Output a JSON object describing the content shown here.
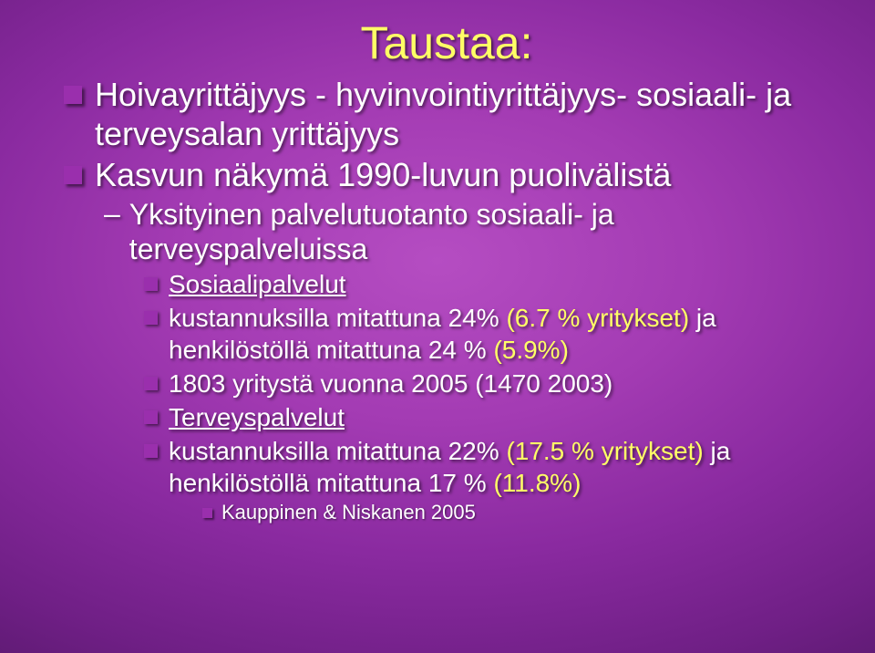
{
  "colors": {
    "title_color": "#ffff66",
    "text_color": "#ffffff",
    "highlight_color": "#ffff66",
    "bullet_lvl1": "#9a2fad",
    "bullet_lvl3": "#9a2fad",
    "bullet_lvl4": "#9a2fad",
    "bg_center": "#b54dc2",
    "bg_edge": "#3a0e4a"
  },
  "title": "Taustaa:",
  "items": {
    "b1": "Hoivayrittäjyys - hyvinvointiyrittäjyys- sosiaali- ja terveysalan yrittäjyys",
    "b2": "Kasvun näkymä 1990-luvun puolivälistä",
    "b2_1": "Yksityinen palvelutuotanto sosiaali- ja terveyspalveluissa",
    "b2_1_1": "Sosiaalipalvelut",
    "b2_1_2_a": "kustannuksilla mitattuna  24% ",
    "b2_1_2_b": "(6.7 % yritykset)",
    "b2_1_2_c": "   ja henkilöstöllä mitattuna  24 % ",
    "b2_1_2_d": "(5.9%)",
    "b2_1_3": "1803 yritystä  vuonna 2005  (1470 2003)",
    "b2_1_4": "Terveyspalvelut",
    "b2_1_5_a": "kustannuksilla mitattuna  22% ",
    "b2_1_5_b": "(17.5 % yritykset)",
    "b2_1_5_c": "  ja henkilöstöllä mitattuna  17 % ",
    "b2_1_5_d": "(11.8%)",
    "b2_1_5_1": "Kauppinen & Niskanen 2005"
  }
}
